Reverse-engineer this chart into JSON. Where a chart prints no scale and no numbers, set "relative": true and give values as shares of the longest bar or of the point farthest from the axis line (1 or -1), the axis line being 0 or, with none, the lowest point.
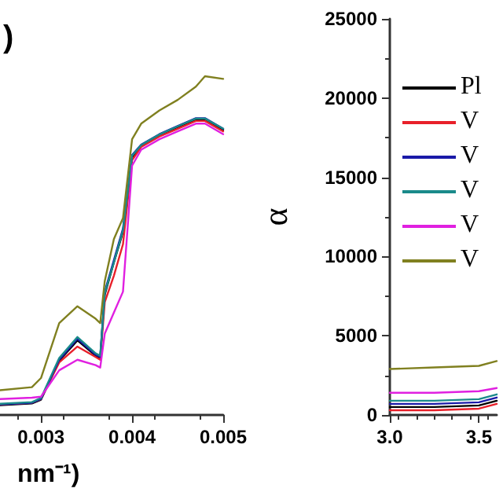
{
  "chart_data": [
    {
      "type": "line",
      "relative": true,
      "xlabel": "nm⁻¹)",
      "annotations": [
        ")"
      ],
      "xlim": [
        0.00255,
        0.005
      ],
      "xticks": [
        0.003,
        0.004,
        0.005
      ],
      "tick_labels": "x",
      "marker": "none",
      "grid": false,
      "x": [
        0.00255,
        0.0029,
        0.003,
        0.0032,
        0.0034,
        0.0036,
        0.00365,
        0.0037,
        0.0038,
        0.0039,
        0.004,
        0.0041,
        0.0043,
        0.0045,
        0.0047,
        0.0048,
        0.005
      ],
      "series": [
        {
          "color": "#000000",
          "values": [
            0.029,
            0.034,
            0.045,
            0.16,
            0.22,
            0.175,
            0.168,
            0.355,
            0.45,
            0.54,
            0.76,
            0.795,
            0.826,
            0.85,
            0.872,
            0.872,
            0.842
          ]
        },
        {
          "color": "#e8202a",
          "values": [
            0.031,
            0.036,
            0.047,
            0.155,
            0.202,
            0.171,
            0.163,
            0.333,
            0.411,
            0.504,
            0.752,
            0.791,
            0.822,
            0.845,
            0.868,
            0.868,
            0.837
          ]
        },
        {
          "color": "#1a1aa8",
          "values": [
            0.031,
            0.036,
            0.047,
            0.163,
            0.225,
            0.178,
            0.171,
            0.364,
            0.457,
            0.55,
            0.767,
            0.798,
            0.829,
            0.853,
            0.876,
            0.876,
            0.845
          ]
        },
        {
          "color": "#1a8a8a",
          "values": [
            0.033,
            0.038,
            0.05,
            0.168,
            0.23,
            0.182,
            0.175,
            0.36,
            0.45,
            0.545,
            0.765,
            0.797,
            0.828,
            0.852,
            0.875,
            0.875,
            0.845
          ]
        },
        {
          "color": "#e020e0",
          "values": [
            0.047,
            0.051,
            0.054,
            0.132,
            0.163,
            0.147,
            0.14,
            0.24,
            0.302,
            0.364,
            0.736,
            0.783,
            0.814,
            0.837,
            0.86,
            0.86,
            0.829
          ]
        },
        {
          "color": "#808020",
          "values": [
            0.073,
            0.082,
            0.109,
            0.271,
            0.321,
            0.284,
            0.271,
            0.395,
            0.519,
            0.581,
            0.814,
            0.86,
            0.899,
            0.93,
            0.969,
            1.0,
            0.992
          ]
        }
      ]
    },
    {
      "type": "line",
      "ylabel": "α",
      "xlim": [
        3.0,
        3.6
      ],
      "xticks": [
        {
          "value": 3.0,
          "label": "3.0"
        },
        3.5
      ],
      "ylim": [
        0,
        25000
      ],
      "yticks": [
        0,
        5000,
        10000,
        15000,
        20000,
        25000
      ],
      "marker": "none",
      "grid": false,
      "legend": "top",
      "x": [
        3.0,
        3.25,
        3.5,
        3.6
      ],
      "series": [
        {
          "name": "Pl",
          "color": "#000000",
          "values": [
            500,
            500,
            600,
            900
          ]
        },
        {
          "name": "V",
          "color": "#e8202a",
          "values": [
            300,
            300,
            400,
            700
          ]
        },
        {
          "name": "V",
          "color": "#1a1aa8",
          "values": [
            700,
            700,
            800,
            1100
          ]
        },
        {
          "name": "V",
          "color": "#1a8a8a",
          "values": [
            900,
            900,
            1000,
            1300
          ]
        },
        {
          "name": "V",
          "color": "#e020e0",
          "values": [
            1400,
            1400,
            1500,
            1700
          ]
        },
        {
          "name": "V",
          "color": "#808020",
          "values": [
            2900,
            3000,
            3100,
            3400
          ]
        }
      ]
    }
  ]
}
